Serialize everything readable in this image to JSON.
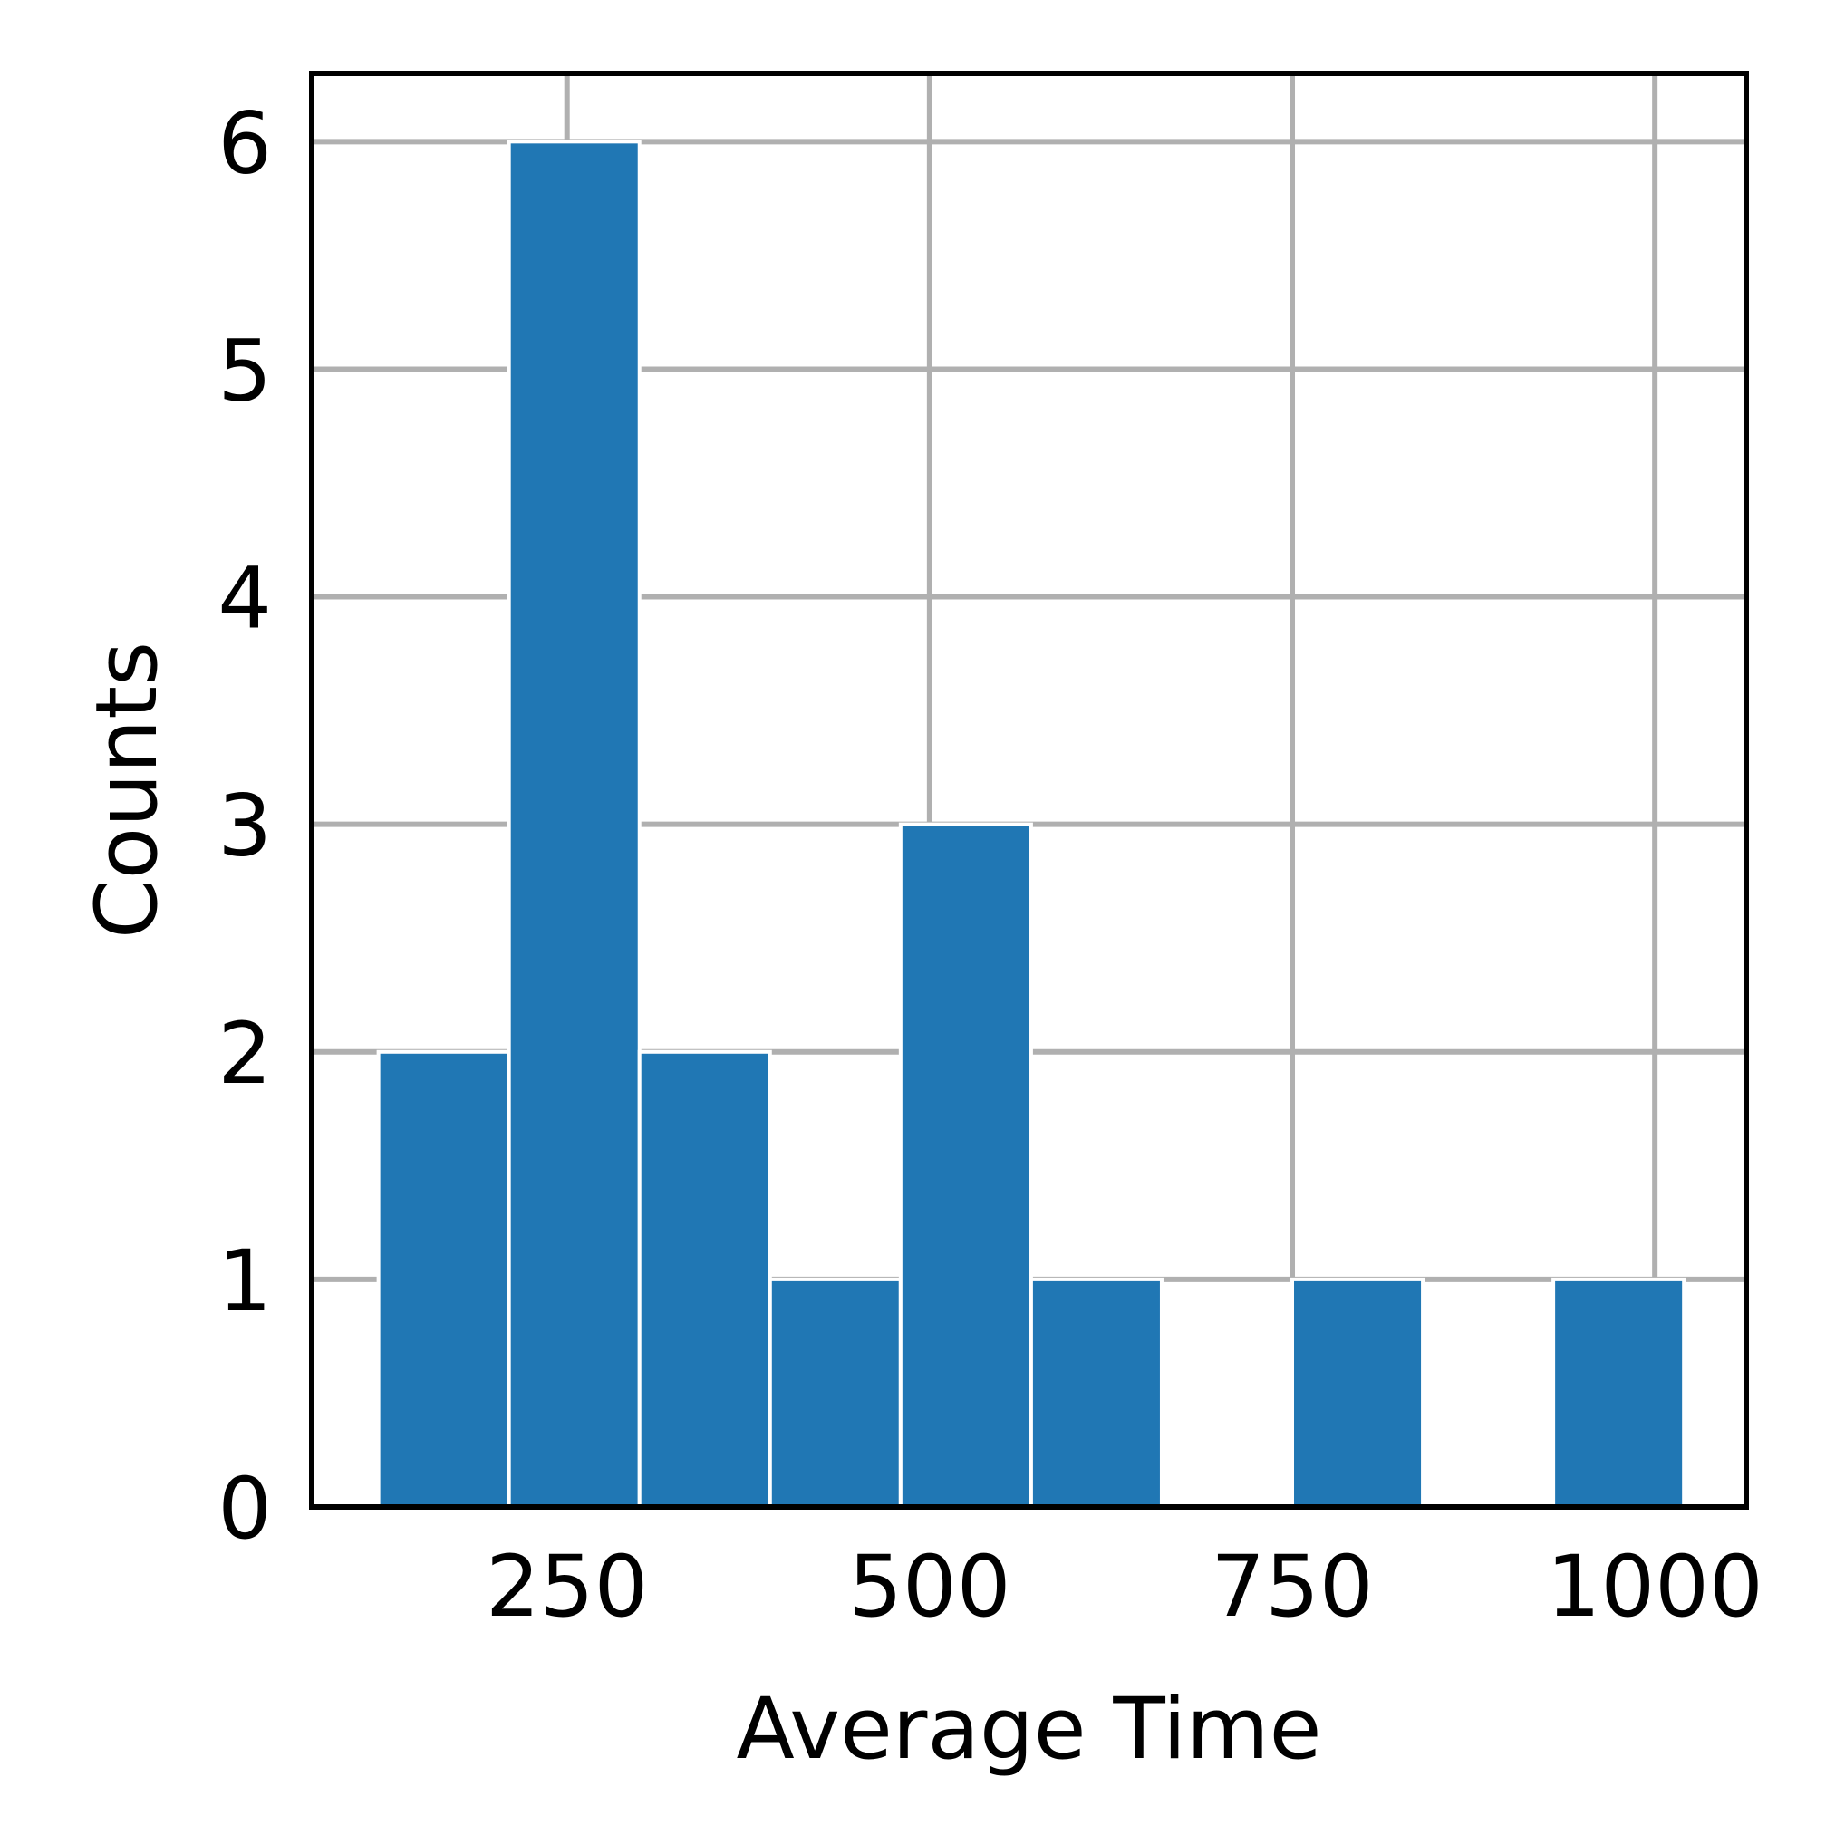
{
  "chart_data": {
    "type": "bar",
    "title": "",
    "xlabel": "Average Time",
    "ylabel": "Counts",
    "bins": [
      {
        "x0": 120,
        "x1": 210,
        "count": 2
      },
      {
        "x0": 210,
        "x1": 300,
        "count": 6
      },
      {
        "x0": 300,
        "x1": 390,
        "count": 2
      },
      {
        "x0": 390,
        "x1": 480,
        "count": 1
      },
      {
        "x0": 480,
        "x1": 570,
        "count": 3
      },
      {
        "x0": 570,
        "x1": 660,
        "count": 1
      },
      {
        "x0": 660,
        "x1": 750,
        "count": 0
      },
      {
        "x0": 750,
        "x1": 840,
        "count": 1
      },
      {
        "x0": 840,
        "x1": 930,
        "count": 0
      },
      {
        "x0": 930,
        "x1": 1020,
        "count": 1
      }
    ],
    "xlim": [
      74,
      1063
    ],
    "ylim": [
      0,
      6.3
    ],
    "xticks": [
      250,
      500,
      750,
      1000
    ],
    "yticks": [
      0,
      1,
      2,
      3,
      4,
      5,
      6
    ],
    "xtick_labels": [
      "250",
      "500",
      "750",
      "1000"
    ],
    "ytick_labels": [
      "0",
      "1",
      "2",
      "3",
      "4",
      "5",
      "6"
    ],
    "grid": true,
    "colors": {
      "bar": "#2077b4",
      "bar_edge": "#ffffff",
      "grid": "#b0b0b0",
      "frame": "#000000"
    }
  }
}
